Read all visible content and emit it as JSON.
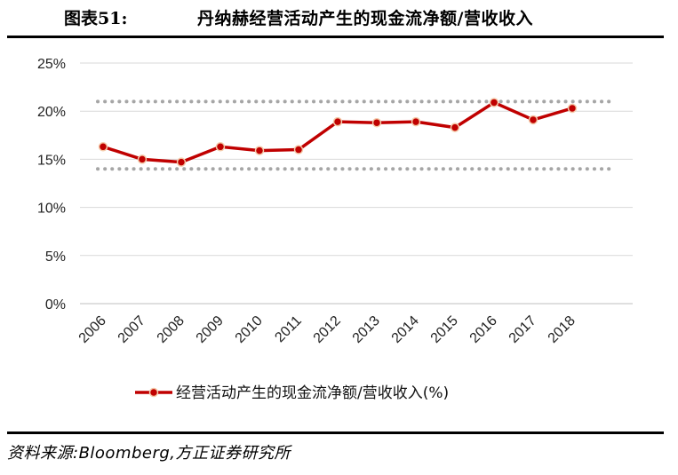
{
  "header": {
    "figure_label": "图表51:",
    "title": "丹纳赫经营活动产生的现金流净额/营收收入"
  },
  "footer": {
    "source": "资料来源:Bloomberg,方正证券研究所"
  },
  "chart_data": {
    "type": "line",
    "categories": [
      "2006",
      "2007",
      "2008",
      "2009",
      "2010",
      "2011",
      "2012",
      "2013",
      "2014",
      "2015",
      "2016",
      "2017",
      "2018"
    ],
    "series": [
      {
        "name": "经营活动产生的现金流净额/营收收入(%)",
        "values": [
          16.3,
          15.0,
          14.7,
          16.3,
          15.9,
          16.0,
          18.9,
          18.8,
          18.9,
          18.3,
          20.9,
          19.1,
          20.3
        ],
        "color": "#c00000"
      }
    ],
    "reference_lines": [
      21,
      14
    ],
    "reference_color": "#a6a6a6",
    "y_ticks": [
      "0%",
      "5%",
      "10%",
      "15%",
      "20%",
      "25%"
    ],
    "ylim": [
      0,
      25
    ],
    "grid": true,
    "legend_position": "bottom"
  }
}
